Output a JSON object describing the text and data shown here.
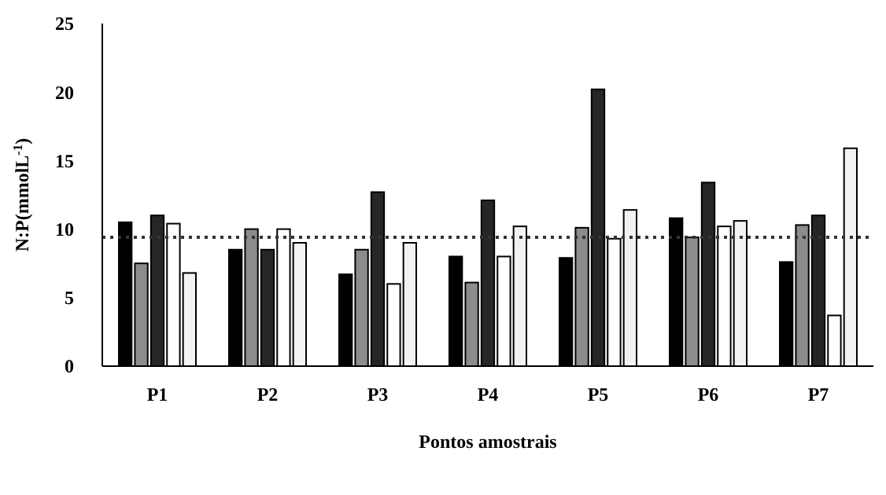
{
  "chart_data": {
    "type": "bar",
    "xlabel": "Pontos amostrais",
    "ylabel": "N:P(mmolL$^{-1}$)",
    "categories": [
      "P1",
      "P2",
      "P3",
      "P4",
      "P5",
      "P6",
      "P7"
    ],
    "series": [
      {
        "color": "#000000",
        "values": [
          10.5,
          8.5,
          6.7,
          8,
          7.9,
          10.8,
          7.6
        ]
      },
      {
        "color": "#8c8c8c",
        "values": [
          7.5,
          10,
          8.5,
          6.1,
          10.1,
          9.4,
          10.3
        ]
      },
      {
        "color": "#262626",
        "values": [
          11,
          8.5,
          12.7,
          12.1,
          20.2,
          13.4,
          11
        ]
      },
      {
        "color": "#ffffff",
        "values": [
          10.4,
          10,
          6,
          8,
          9.3,
          10.2,
          3.7
        ]
      },
      {
        "color": "#f2f2f2",
        "values": [
          6.8,
          9,
          9,
          10.2,
          11.4,
          10.6,
          15.9
        ]
      }
    ],
    "ylim": [
      0,
      25
    ],
    "yticks": [
      0,
      5,
      10,
      15,
      20,
      25
    ],
    "grid": false,
    "ref_lines": [
      {
        "axis": "y",
        "value": 9.4,
        "line_style": "dotted"
      }
    ]
  }
}
